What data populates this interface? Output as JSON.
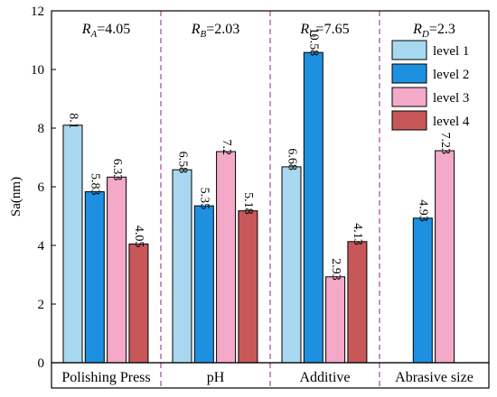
{
  "chart_data": {
    "type": "bar",
    "ylabel": "Sa(nm)",
    "ylim": [
      0,
      12
    ],
    "yticks": [
      0,
      2,
      4,
      6,
      8,
      10,
      12
    ],
    "groups": [
      {
        "label": "Polishing Press",
        "r_symbol": "R",
        "r_sub": "A",
        "r_value": "=4.05",
        "values": [
          "8.1",
          "5.83",
          "6.33",
          "4.05"
        ]
      },
      {
        "label": "pH",
        "r_symbol": "R",
        "r_sub": "B",
        "r_value": "=2.03",
        "values": [
          "6.58",
          "5.35",
          "7.2",
          "5.18"
        ]
      },
      {
        "label": "Additive",
        "r_symbol": "R",
        "r_sub": "C",
        "r_value": "=7.65",
        "values": [
          "6.68",
          "10.58",
          "2.93",
          "4.13"
        ]
      },
      {
        "label": "Abrasive size",
        "r_symbol": "R",
        "r_sub": "D",
        "r_value": "=2.3",
        "values": [
          null,
          "4.93",
          "7.23",
          null
        ]
      }
    ],
    "series": [
      {
        "name": "level 1",
        "color": "#a8d8f0"
      },
      {
        "name": "level 2",
        "color": "#1e90e0"
      },
      {
        "name": "level 3",
        "color": "#f4a9c9"
      },
      {
        "name": "level 4",
        "color": "#c8575a"
      }
    ],
    "legend_position": "top-right",
    "separator_color": "#a04898",
    "grid": false
  }
}
